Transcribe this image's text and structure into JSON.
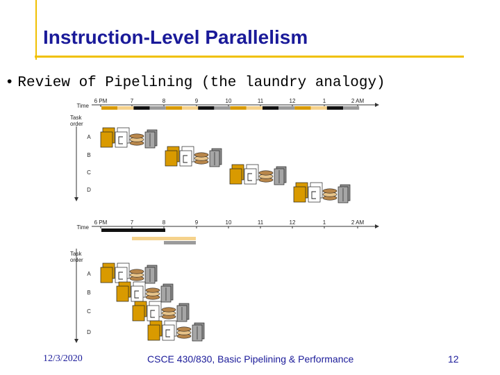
{
  "slide": {
    "title": "Instruction-Level Parallelism",
    "bullet": "Review of Pipelining (the laundry analogy)"
  },
  "figure": {
    "time_label": "Time",
    "task_order_label": [
      "Task",
      "order"
    ],
    "time_ticks_top": [
      "6 PM",
      "7",
      "8",
      "9",
      "10",
      "11",
      "12",
      "1",
      "2 AM"
    ],
    "time_ticks_bottom": [
      "6 PM",
      "7",
      "8",
      "9",
      "10",
      "11",
      "12",
      "1",
      "2 AM"
    ],
    "tasks": [
      "A",
      "B",
      "C",
      "D"
    ],
    "stage_colors": {
      "wash": "#d99a00",
      "dry": "#f5d28c",
      "fold": "#111111",
      "store": "#9a9a9a"
    },
    "icons": [
      "washer-icon",
      "dryer-icon",
      "folded-laundry-icon",
      "closet-icon"
    ]
  },
  "footer": {
    "date": "12/3/2020",
    "course": "CSCE 430/830, Basic Pipelining & Performance",
    "page": "12"
  }
}
